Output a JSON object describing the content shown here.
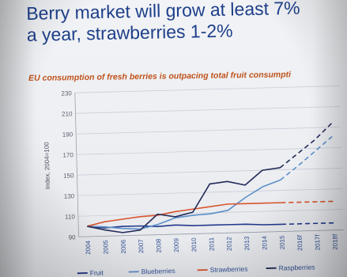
{
  "slide": {
    "title_line1": "Berry market will grow at least 7%",
    "title_line2": "a year, strawberries 1-2%"
  },
  "chart_data": {
    "type": "line",
    "title": "EU consumption of fresh berries is outpacing total fruit consumpti",
    "ylabel": "Index, 2004=100",
    "xlabel": "",
    "x": [
      "2004",
      "2005",
      "2006",
      "2007",
      "2008",
      "2009",
      "2010",
      "2011",
      "2012",
      "2013",
      "2014",
      "2015",
      "2016f",
      "2017f",
      "2018f"
    ],
    "y_ticks": [
      90,
      110,
      130,
      150,
      170,
      190,
      210,
      230
    ],
    "ylim": [
      90,
      230
    ],
    "grid": true,
    "legend_position": "bottom",
    "forecast_from": "2015",
    "series": [
      {
        "name": "Fruit",
        "color": "#23388a",
        "values": [
          100,
          98,
          99,
          99,
          98,
          99,
          98,
          98,
          98,
          98,
          97,
          97,
          97,
          97,
          97
        ]
      },
      {
        "name": "Blueberries",
        "color": "#5c8fc9",
        "values": [
          100,
          99,
          97,
          96,
          100,
          106,
          108,
          109,
          112,
          124,
          134,
          140,
          153,
          167,
          181
        ]
      },
      {
        "name": "Strawberries",
        "color": "#d9542c",
        "values": [
          100,
          104,
          106,
          108,
          109,
          112,
          114,
          116,
          118,
          118,
          118,
          118,
          118,
          118,
          118
        ]
      },
      {
        "name": "Raspberries",
        "color": "#232a56",
        "values": [
          100,
          96,
          93,
          95,
          110,
          107,
          111,
          138,
          140,
          136,
          150,
          152,
          165,
          178,
          194
        ]
      }
    ]
  }
}
